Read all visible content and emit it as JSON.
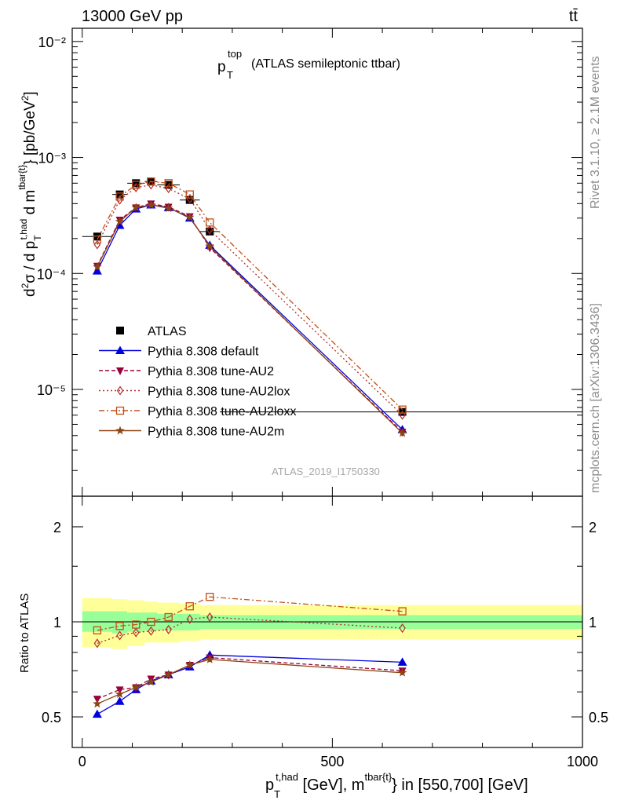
{
  "header": {
    "left": "13000 GeV pp",
    "right": "tt̄"
  },
  "plot_title": {
    "p": "p",
    "sub": "T",
    "sup": "top",
    "rest": "(ATLAS semileptonic ttbar)"
  },
  "watermark": "ATLAS_2019_I1750330",
  "side": {
    "rivet": "Rivet 3.1.10, ≥ 2.1M events",
    "mcplots": "mcplots.cern.ch [arXiv:1306.3436]"
  },
  "axes": {
    "ylabel_main": "d²σ / d p_T^{t,had} d m^{tbar{t}} [pb/GeV²]",
    "ylabel_ratio": "Ratio to ATLAS",
    "xlabel": "p_T^{t,had} [GeV], m^{tbar{t}} in [550,700] [GeV]",
    "main_yticks": [
      "10⁻⁵",
      "10⁻⁴",
      "10⁻³",
      "10⁻²"
    ],
    "ratio_yticks": [
      "0.5",
      "1",
      "2"
    ],
    "xticks": [
      "0",
      "500",
      "1000"
    ]
  },
  "colors": {
    "data": "#000000",
    "default": "#0000dd",
    "au2": "#99003b",
    "au2lox": "#b22d2d",
    "au2loxx": "#c25018",
    "au2m": "#8b4513",
    "band_inner": "#99ff99",
    "band_outer": "#ffff99"
  },
  "legend": [
    {
      "key": "data",
      "label": "ATLAS"
    },
    {
      "key": "default",
      "label": "Pythia 8.308 default"
    },
    {
      "key": "au2",
      "label": "Pythia 8.308 tune-AU2"
    },
    {
      "key": "au2lox",
      "label": "Pythia 8.308 tune-AU2lox"
    },
    {
      "key": "au2loxx",
      "label": "Pythia 8.308 tune-AU2loxx"
    },
    {
      "key": "au2m",
      "label": "Pythia 8.308 tune-AU2m"
    }
  ],
  "chart_data": {
    "type": "line",
    "xlim": [
      -20,
      1000
    ],
    "main": {
      "yscale": "log",
      "ylim": [
        1.2e-06,
        0.013
      ],
      "x": [
        30,
        75,
        107.5,
        137.5,
        172.5,
        215,
        255,
        640
      ],
      "xerr": [
        [
          0,
          60
        ],
        [
          60,
          90
        ],
        [
          90,
          125
        ],
        [
          125,
          150
        ],
        [
          150,
          195
        ],
        [
          195,
          235
        ],
        [
          235,
          275
        ],
        [
          275,
          1000
        ]
      ],
      "series": [
        {
          "key": "data",
          "name": "ATLAS",
          "marker": "square",
          "values": [
            0.000208,
            0.00048,
            0.0006,
            0.00062,
            0.00058,
            0.00043,
            0.00023,
            6.4e-06
          ]
        },
        {
          "key": "default",
          "name": "Pythia 8.308 default",
          "marker": "triangle",
          "dash": "",
          "values": [
            0.000105,
            0.00026,
            0.00036,
            0.00039,
            0.00037,
            0.0003,
            0.000175,
            4.5e-06
          ]
        },
        {
          "key": "au2",
          "name": "Pythia 8.308 tune-AU2",
          "marker": "tri-down",
          "dash": "5,3",
          "values": [
            0.000116,
            0.00029,
            0.00037,
            0.0004,
            0.000375,
            0.00031,
            0.000167,
            4.3e-06
          ]
        },
        {
          "key": "au2lox",
          "name": "Pythia 8.308 tune-AU2lox",
          "marker": "diamond",
          "dash": "2,3",
          "values": [
            0.000177,
            0.00043,
            0.00055,
            0.00058,
            0.00054,
            0.00044,
            0.000237,
            6e-06
          ]
        },
        {
          "key": "au2loxx",
          "name": "Pythia 8.308 tune-AU2loxx",
          "marker": "square-open",
          "dash": "7,3,2,3",
          "values": [
            0.000196,
            0.00046,
            0.00058,
            0.00062,
            0.0006,
            0.00048,
            0.000275,
            6.7e-06
          ]
        },
        {
          "key": "au2m",
          "name": "Pythia 8.308 tune-AU2m",
          "marker": "star",
          "dash": "",
          "values": [
            0.000114,
            0.00028,
            0.00037,
            0.00039,
            0.000365,
            0.000305,
            0.000171,
            4.2e-06
          ]
        }
      ]
    },
    "ratio": {
      "yscale": "log",
      "ylim": [
        0.4,
        2.5
      ],
      "band_inner": [
        [
          0.93,
          1.08
        ],
        [
          0.92,
          1.08
        ],
        [
          0.93,
          1.07
        ],
        [
          0.94,
          1.07
        ],
        [
          0.94,
          1.06
        ],
        [
          0.94,
          1.06
        ],
        [
          0.95,
          1.05
        ],
        [
          0.95,
          1.05
        ]
      ],
      "band_outer": [
        [
          0.83,
          1.19
        ],
        [
          0.82,
          1.18
        ],
        [
          0.84,
          1.17
        ],
        [
          0.86,
          1.16
        ],
        [
          0.86,
          1.15
        ],
        [
          0.87,
          1.14
        ],
        [
          0.88,
          1.13
        ],
        [
          0.88,
          1.13
        ]
      ],
      "series": [
        {
          "key": "default",
          "values": [
            0.51,
            0.56,
            0.61,
            0.65,
            0.68,
            0.72,
            0.785,
            0.745
          ]
        },
        {
          "key": "au2",
          "values": [
            0.57,
            0.61,
            0.62,
            0.66,
            0.68,
            0.73,
            0.77,
            0.7
          ]
        },
        {
          "key": "au2lox",
          "values": [
            0.855,
            0.905,
            0.925,
            0.935,
            0.945,
            1.02,
            1.035,
            0.955
          ]
        },
        {
          "key": "au2loxx",
          "values": [
            0.94,
            0.97,
            0.98,
            1.0,
            1.035,
            1.12,
            1.2,
            1.08
          ]
        },
        {
          "key": "au2m",
          "values": [
            0.55,
            0.59,
            0.62,
            0.645,
            0.68,
            0.73,
            0.76,
            0.69
          ]
        }
      ]
    }
  }
}
